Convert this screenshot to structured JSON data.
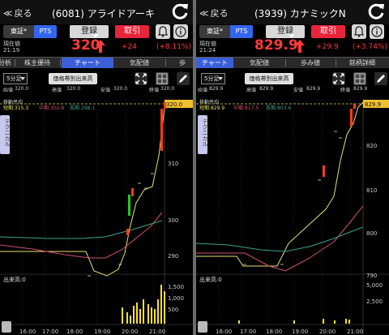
{
  "left": {
    "back": "戻る",
    "title": "(6081) アライドアーキ",
    "market": "東証*",
    "pts": "PTS",
    "register": "登録",
    "trade": "取引",
    "label_now": "現在値",
    "time": "21:19",
    "price": "320",
    "change": "+24",
    "percent": "(+8.11%)",
    "tabs": [
      "分析",
      "株主優待",
      "チャート",
      "気配値",
      "歩"
    ],
    "interval": "5分足",
    "vol_button": "価格帯別出来高",
    "ohlc_labels": [
      "始値",
      "高値",
      "安値",
      "終値"
    ],
    "ohlc_values": [
      "320.0",
      "320.0",
      "320.0",
      "320.0"
    ],
    "ma_title": "移動平均",
    "ma_values": [
      "短期:315.3",
      "中期:302.8",
      "長期:298.1"
    ],
    "tech_tab": "テクニカル",
    "price_tag": "320.0",
    "y_ticks": [
      "310",
      "300",
      "290"
    ],
    "volume_label": "出来高:0",
    "vol_ticks": [
      "1,500",
      "1,000",
      "500"
    ],
    "x_ticks": [
      "16:00",
      "17:00",
      "18:00",
      "19:00",
      "20:00",
      "21:00"
    ]
  },
  "right": {
    "back": "戻る",
    "title": "(3939) カナミックN",
    "market": "東証*",
    "pts": "PTS",
    "register": "登録",
    "trade": "取引",
    "label_now": "現在値",
    "time": "21:24",
    "price": "829.9",
    "change": "+29.9",
    "percent": "(+3.74%)",
    "tabs": [
      "チャート",
      "気配値",
      "歩み値",
      "銘柄詳細"
    ],
    "interval": "5分足",
    "vol_button": "価格帯別出来高",
    "ohlc_labels": [
      "始値",
      "高値",
      "安値",
      "終値"
    ],
    "ohlc_values": [
      "829.9",
      "829.9",
      "829.9",
      "829.9"
    ],
    "ma_title": "移動平均",
    "ma_values": [
      "短期:829.9",
      "中期:817.5",
      "長期:803.6"
    ],
    "tech_tab": "テクニカル",
    "price_tag": "829.9",
    "y_ticks": [
      "820",
      "810",
      "800",
      "790"
    ],
    "volume_label": "出来高:0",
    "vol_ticks": [
      "5,000",
      "2,500"
    ],
    "x_ticks": [
      "16:00",
      "17:00",
      "18:00",
      "19:00",
      "20:00",
      "21:00"
    ]
  },
  "colors": {
    "accent_blue": "#3b5fd8",
    "red": "#ff3b3b",
    "candle_up": "#ff3b1a",
    "candle_down": "#22cc22",
    "ma_short": "#e8e070",
    "ma_mid": "#d05070",
    "ma_long": "#40a090",
    "volume_bar": "#ffe030"
  },
  "icons": [
    "back-chevron-icon",
    "refresh-icon",
    "bell-icon",
    "info-icon",
    "fullscreen-icon",
    "grid-icon",
    "pencil-icon",
    "up-arrow-icon"
  ]
}
